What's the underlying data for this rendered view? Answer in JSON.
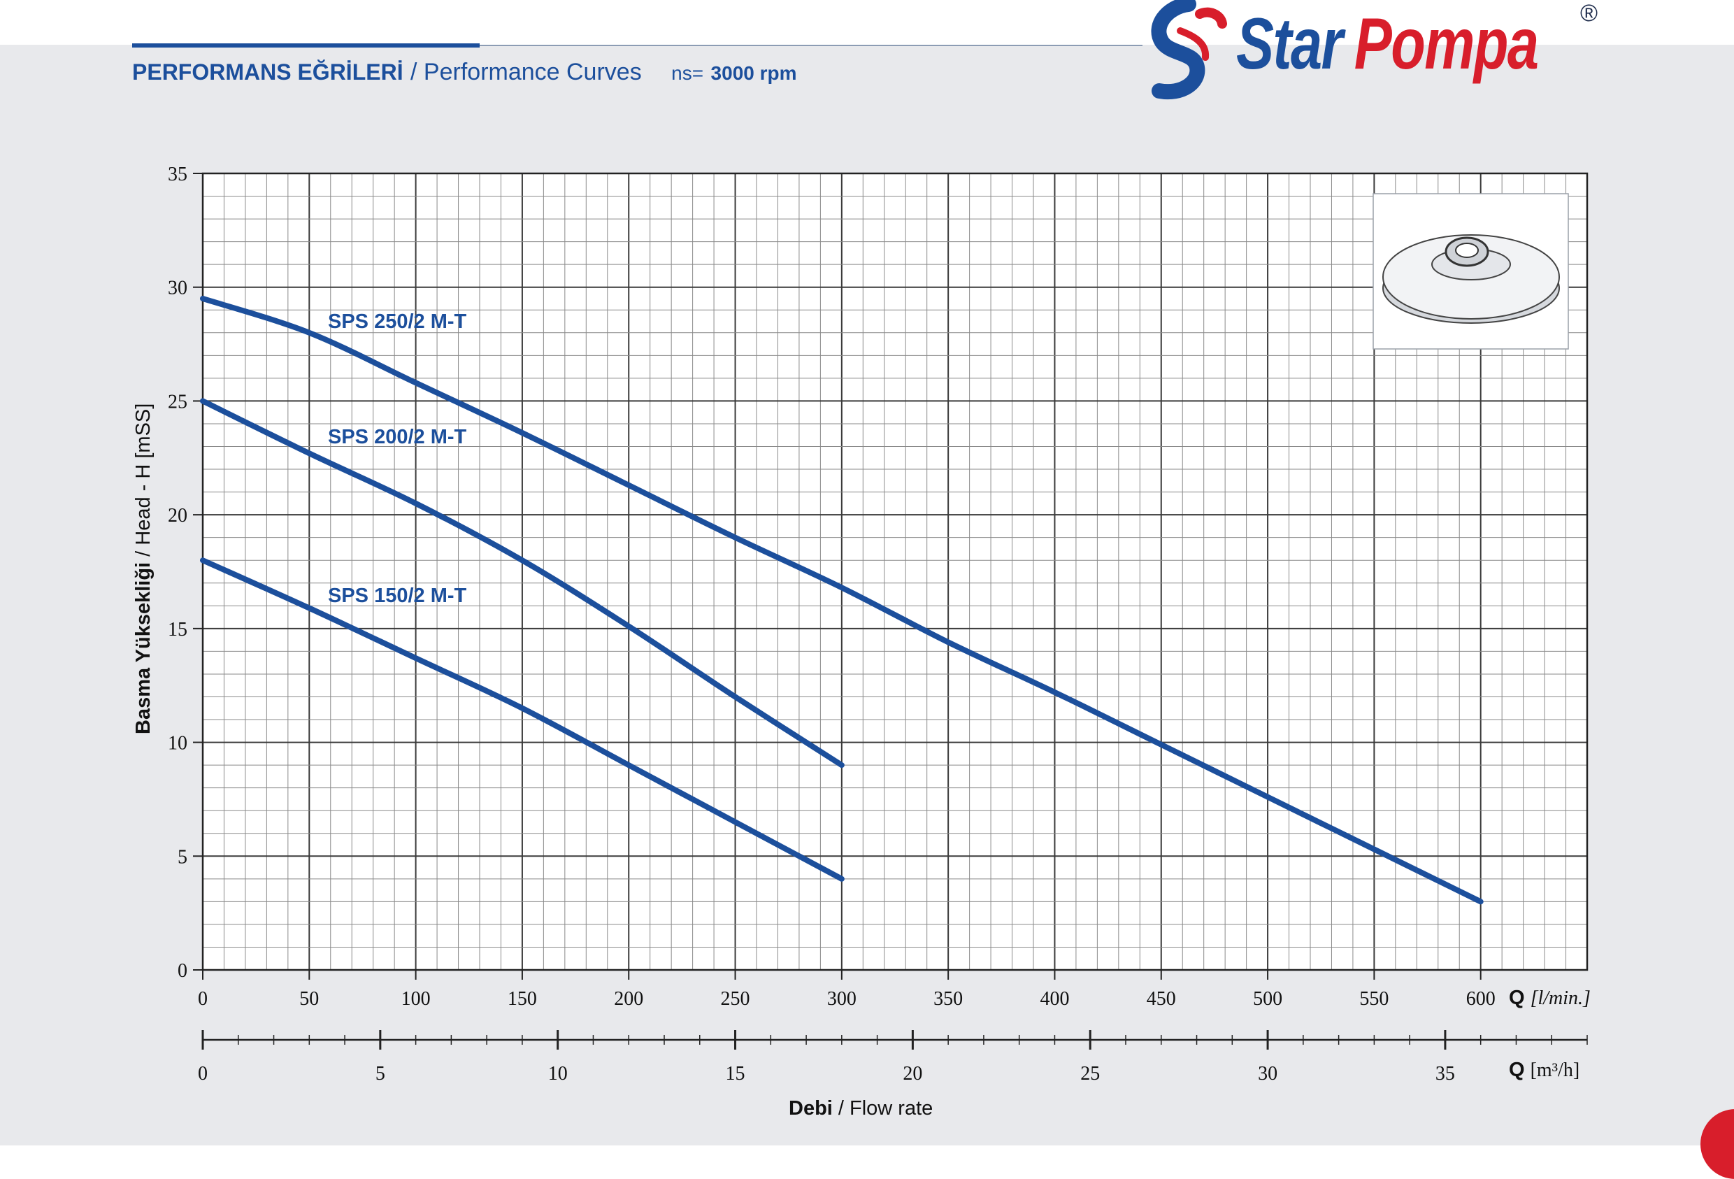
{
  "header": {
    "title_tr": "PERFORMANS EĞRİLERİ",
    "title_en": "/ Performance Curves",
    "ns_label": "ns=",
    "rpm": "3000 rpm"
  },
  "brand": {
    "name_a": "Star",
    "name_b": "Pompa",
    "reg": "®",
    "colors": {
      "blue": "#1c4f9c",
      "red": "#d81e2b"
    }
  },
  "chart_data": {
    "type": "line",
    "ylabel_bold": "Basma Yüksekliği",
    "ylabel_rest": " / Head - H [mSS]",
    "xlabel_bold": "Debi",
    "xlabel_rest": " / Flow rate",
    "x_unit_q": "Q",
    "x_unit_lmin": "[l/min.]",
    "x2_unit_q": "Q",
    "x2_unit_m3h": "[m³/h]",
    "xlim": [
      0,
      650
    ],
    "ylim": [
      0,
      35
    ],
    "x_ticks": [
      0,
      50,
      100,
      150,
      200,
      250,
      300,
      350,
      400,
      450,
      500,
      550,
      600
    ],
    "y_ticks": [
      0,
      5,
      10,
      15,
      20,
      25,
      30,
      35
    ],
    "x2_ticks": [
      0,
      5,
      10,
      15,
      20,
      25,
      30,
      35
    ],
    "grid": true,
    "series": [
      {
        "name": "SPS 250/2 M-T",
        "x": [
          0,
          50,
          100,
          150,
          200,
          250,
          300,
          350,
          400,
          450,
          500,
          550,
          600
        ],
        "y": [
          29.5,
          28.0,
          25.8,
          23.6,
          21.3,
          19.0,
          16.8,
          14.4,
          12.2,
          9.9,
          7.6,
          5.3,
          3.0
        ]
      },
      {
        "name": "SPS 200/2 M-T",
        "x": [
          0,
          50,
          100,
          150,
          200,
          250,
          300
        ],
        "y": [
          25.0,
          22.7,
          20.5,
          18.0,
          15.1,
          12.0,
          9.0
        ]
      },
      {
        "name": "SPS 150/2 M-T",
        "x": [
          0,
          50,
          100,
          150,
          200,
          250,
          300
        ],
        "y": [
          18.0,
          15.9,
          13.7,
          11.5,
          9.0,
          6.5,
          4.0
        ]
      }
    ]
  }
}
